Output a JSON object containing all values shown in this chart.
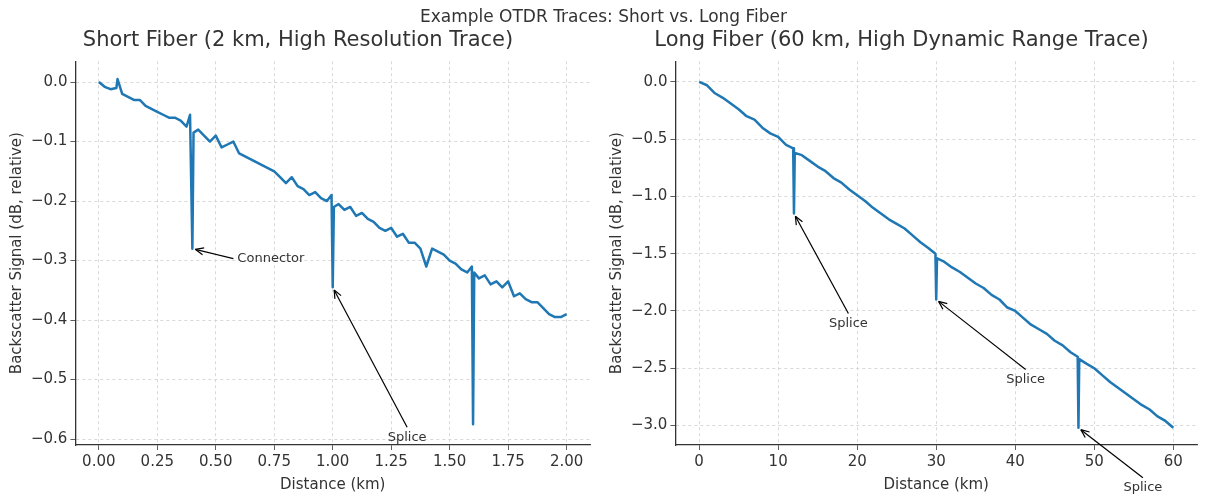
{
  "chart_data": [
    {
      "type": "other",
      "title": "Example OTDR Traces: Short vs. Long Fiber"
    },
    {
      "type": "line",
      "title": "Short Fiber (2 km, High Resolution Trace)",
      "xlabel": "Distance (km)",
      "ylabel": "Backscatter Signal (dB, relative)",
      "grid": true,
      "xlim": [
        -0.1,
        2.1
      ],
      "ylim": [
        -0.61,
        0.035
      ],
      "xticks": [
        {
          "value": 0,
          "label": "0.00"
        },
        {
          "value": 0.25,
          "label": "0.25"
        },
        {
          "value": 0.5,
          "label": "0.50"
        },
        {
          "value": 0.75,
          "label": "0.75"
        },
        {
          "value": 1,
          "label": "1.00"
        },
        {
          "value": 1.25,
          "label": "1.25"
        },
        {
          "value": 1.5,
          "label": "1.50"
        },
        {
          "value": 1.75,
          "label": "1.75"
        },
        {
          "value": 2,
          "label": "2.00"
        }
      ],
      "yticks": [
        {
          "value": 0,
          "label": "0.0"
        },
        {
          "value": -0.1,
          "label": "−0.1"
        },
        {
          "value": -0.2,
          "label": "−0.2"
        },
        {
          "value": -0.3,
          "label": "−0.3"
        },
        {
          "value": -0.4,
          "label": "−0.4"
        },
        {
          "value": -0.5,
          "label": "−0.5"
        },
        {
          "value": -0.6,
          "label": "−0.6"
        }
      ],
      "annotations": [
        {
          "text": "Connector",
          "x": 0.4,
          "y": -0.28
        },
        {
          "text": "Splice",
          "x": 1.0,
          "y": -0.345
        }
      ],
      "series": [
        {
          "color": "#1f77b4",
          "x": [
            0,
            0.025,
            0.05,
            0.075,
            0.08,
            0.1,
            0.125,
            0.15,
            0.175,
            0.2,
            0.225,
            0.25,
            0.275,
            0.3,
            0.325,
            0.35,
            0.375,
            0.39,
            0.4,
            0.405,
            0.425,
            0.45,
            0.475,
            0.5,
            0.525,
            0.55,
            0.575,
            0.6,
            0.625,
            0.65,
            0.675,
            0.7,
            0.725,
            0.75,
            0.775,
            0.8,
            0.825,
            0.85,
            0.875,
            0.9,
            0.925,
            0.95,
            0.975,
            0.995,
            1.0,
            1.005,
            1.025,
            1.05,
            1.075,
            1.1,
            1.125,
            1.15,
            1.175,
            1.2,
            1.225,
            1.25,
            1.275,
            1.3,
            1.325,
            1.35,
            1.375,
            1.4,
            1.425,
            1.45,
            1.475,
            1.5,
            1.525,
            1.55,
            1.575,
            1.595,
            1.6,
            1.605,
            1.625,
            1.65,
            1.675,
            1.7,
            1.725,
            1.75,
            1.775,
            1.8,
            1.825,
            1.85,
            1.875,
            1.9,
            1.925,
            1.95,
            1.975,
            2.0
          ],
          "values": [
            0,
            -0.008,
            -0.012,
            -0.01,
            0.005,
            -0.02,
            -0.025,
            -0.03,
            -0.03,
            -0.04,
            -0.045,
            -0.05,
            -0.055,
            -0.06,
            -0.06,
            -0.065,
            -0.075,
            -0.055,
            -0.28,
            -0.085,
            -0.08,
            -0.09,
            -0.1,
            -0.09,
            -0.11,
            -0.105,
            -0.1,
            -0.12,
            -0.125,
            -0.13,
            -0.135,
            -0.14,
            -0.145,
            -0.15,
            -0.16,
            -0.17,
            -0.16,
            -0.175,
            -0.18,
            -0.19,
            -0.185,
            -0.195,
            -0.2,
            -0.19,
            -0.345,
            -0.21,
            -0.205,
            -0.215,
            -0.21,
            -0.225,
            -0.22,
            -0.23,
            -0.235,
            -0.245,
            -0.25,
            -0.245,
            -0.26,
            -0.255,
            -0.27,
            -0.27,
            -0.28,
            -0.31,
            -0.28,
            -0.285,
            -0.29,
            -0.3,
            -0.305,
            -0.315,
            -0.32,
            -0.31,
            -0.575,
            -0.32,
            -0.33,
            -0.325,
            -0.34,
            -0.335,
            -0.345,
            -0.335,
            -0.36,
            -0.355,
            -0.365,
            -0.37,
            -0.37,
            -0.38,
            -0.39,
            -0.395,
            -0.395,
            -0.39
          ]
        }
      ]
    },
    {
      "type": "line",
      "title": "Long Fiber (60 km, High Dynamic Range Trace)",
      "xlabel": "Distance (km)",
      "ylabel": "Backscatter Signal (dB, relative)",
      "grid": true,
      "xlim": [
        -3,
        63
      ],
      "ylim": [
        -3.17,
        0.18
      ],
      "xticks": [
        0,
        10,
        20,
        30,
        40,
        50,
        60
      ],
      "yticks": [
        {
          "value": 0,
          "label": "0.0"
        },
        {
          "value": -0.5,
          "label": "−0.5"
        },
        {
          "value": -1,
          "label": "−1.0"
        },
        {
          "value": -1.5,
          "label": "−1.5"
        },
        {
          "value": -2,
          "label": "−2.0"
        },
        {
          "value": -2.5,
          "label": "−2.5"
        },
        {
          "value": -3,
          "label": "−3.0"
        }
      ],
      "annotations": [
        {
          "text": "Splice",
          "x": 12,
          "y": -1.15
        },
        {
          "text": "Splice",
          "x": 30,
          "y": -1.9
        },
        {
          "text": "Splice",
          "x": 48,
          "y": -3.02
        }
      ],
      "series": [
        {
          "color": "#1f77b4",
          "x": [
            0,
            1,
            2,
            3,
            4,
            5,
            6,
            7,
            8,
            9,
            10,
            11,
            11.9,
            12,
            12.1,
            13,
            14,
            15,
            16,
            17,
            18,
            19,
            20,
            21,
            22,
            23,
            24,
            25,
            26,
            27,
            28,
            29,
            29.9,
            30,
            30.1,
            31,
            32,
            33,
            34,
            35,
            36,
            37,
            38,
            39,
            40,
            41,
            42,
            43,
            44,
            45,
            46,
            47,
            47.9,
            48,
            48.1,
            49,
            50,
            51,
            52,
            53,
            54,
            55,
            56,
            57,
            58,
            59,
            60
          ],
          "values": [
            0,
            -0.03,
            -0.1,
            -0.14,
            -0.19,
            -0.24,
            -0.3,
            -0.33,
            -0.4,
            -0.45,
            -0.48,
            -0.55,
            -0.58,
            -1.15,
            -0.62,
            -0.64,
            -0.69,
            -0.74,
            -0.78,
            -0.84,
            -0.88,
            -0.94,
            -0.99,
            -1.04,
            -1.1,
            -1.15,
            -1.2,
            -1.24,
            -1.28,
            -1.34,
            -1.4,
            -1.45,
            -1.5,
            -1.9,
            -1.54,
            -1.57,
            -1.62,
            -1.66,
            -1.71,
            -1.76,
            -1.8,
            -1.86,
            -1.9,
            -1.97,
            -2.0,
            -2.06,
            -2.12,
            -2.16,
            -2.2,
            -2.26,
            -2.3,
            -2.36,
            -2.4,
            -3.02,
            -2.42,
            -2.46,
            -2.5,
            -2.56,
            -2.62,
            -2.67,
            -2.72,
            -2.77,
            -2.82,
            -2.86,
            -2.92,
            -2.96,
            -3.02
          ]
        }
      ]
    }
  ]
}
